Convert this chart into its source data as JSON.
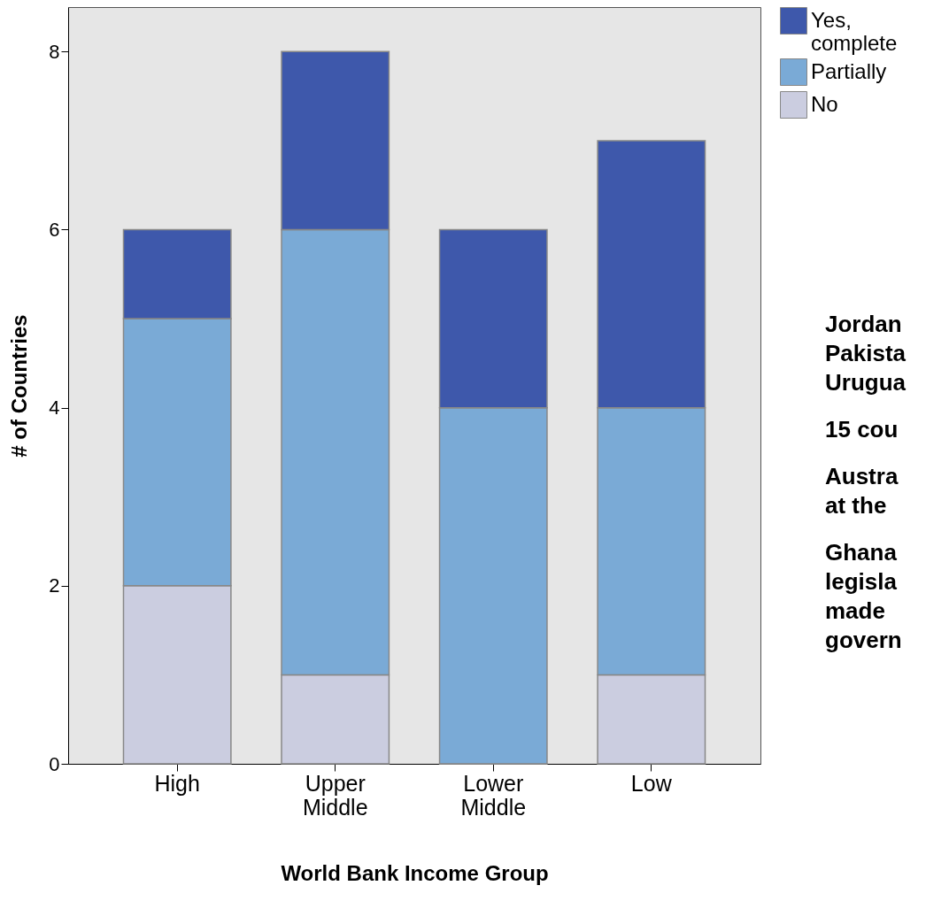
{
  "chart_data": {
    "type": "bar",
    "stacked": true,
    "xlabel": "World Bank Income Group",
    "ylabel": "# of Countries",
    "categories": [
      "High",
      "Upper Middle",
      "Lower Middle",
      "Low"
    ],
    "series": [
      {
        "name": "No",
        "color": "#cbcde0",
        "values": [
          2,
          1,
          0,
          1
        ]
      },
      {
        "name": "Partially",
        "color": "#7aaad6",
        "values": [
          3,
          5,
          4,
          3
        ]
      },
      {
        "name": "Yes, complete",
        "color": "#3e58ab",
        "values": [
          1,
          2,
          2,
          3
        ]
      }
    ],
    "ylim": [
      0,
      8.5
    ],
    "yticks": [
      0,
      2,
      4,
      6,
      8
    ],
    "grid": false,
    "legend": "top right",
    "annotations": [
      "Jordan\nPakista\nUrugua",
      "15 cou",
      "Austra\nat the",
      "Ghana\nlegisla\nmade\ngovern"
    ]
  }
}
